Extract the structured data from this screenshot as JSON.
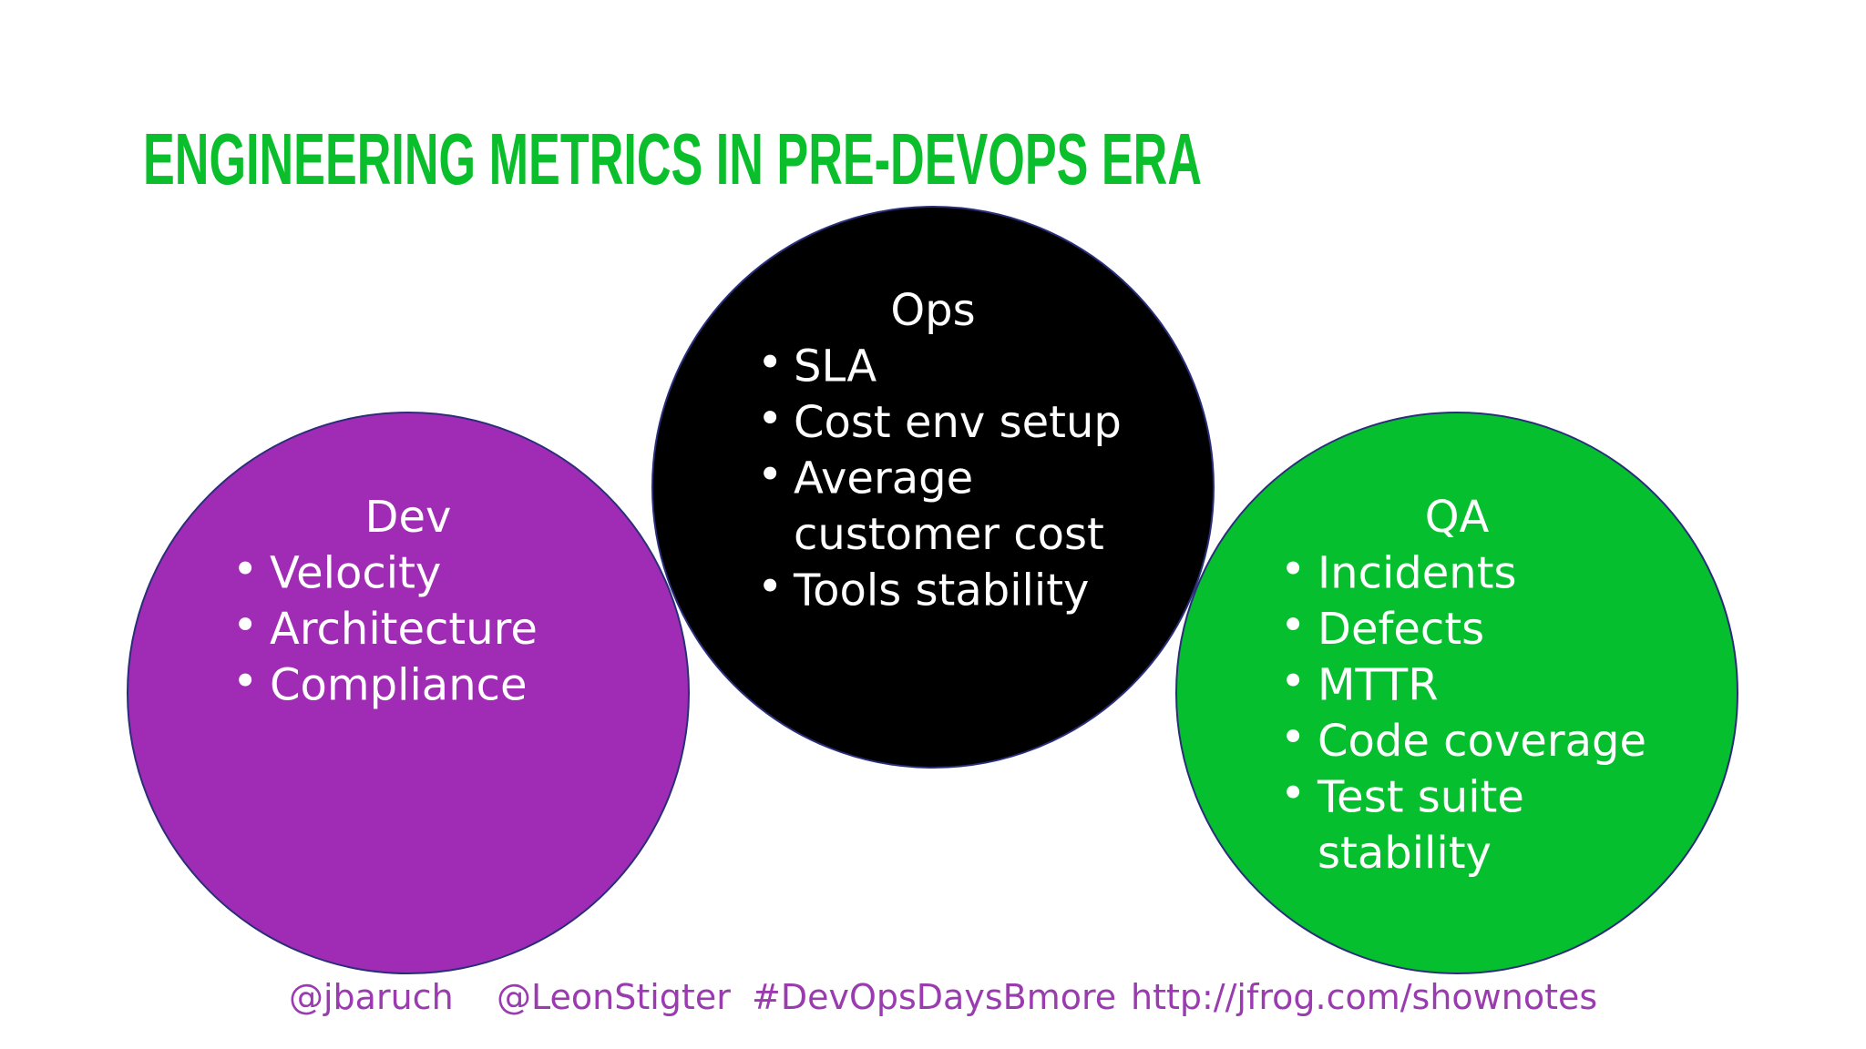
{
  "title": "ENGINEERING METRICS IN PRE-DEVOPS ERA",
  "circles": [
    {
      "label": "Dev",
      "items": [
        [
          "Velocity"
        ],
        [
          "Architecture"
        ],
        [
          "Compliance"
        ]
      ]
    },
    {
      "label": "Ops",
      "items": [
        [
          "SLA"
        ],
        [
          "Cost env setup"
        ],
        [
          "Average",
          "customer cost"
        ],
        [
          "Tools stability"
        ]
      ]
    },
    {
      "label": "QA",
      "items": [
        [
          "Incidents"
        ],
        [
          "Defects"
        ],
        [
          "MTTR"
        ],
        [
          "Code coverage"
        ],
        [
          "Test suite",
          "stability"
        ]
      ]
    }
  ],
  "footer": [
    "@jbaruch",
    "@LeonStigter",
    "#DevOpsDaysBmore",
    "http://jfrog.com/shownotes"
  ]
}
